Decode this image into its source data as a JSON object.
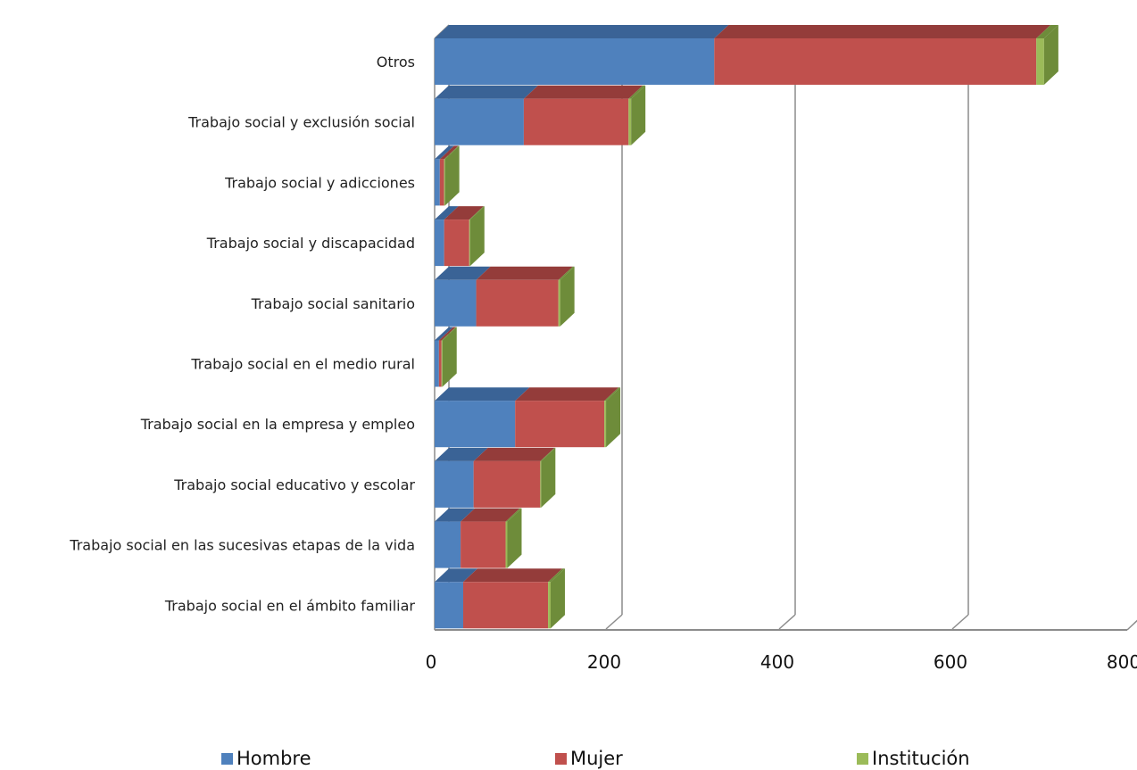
{
  "chart_data": {
    "type": "bar",
    "orientation": "horizontal",
    "stacked": true,
    "three_d": true,
    "categories": [
      "Otros",
      "Trabajo social y exclusión social",
      "Trabajo social y adicciones",
      "Trabajo social y discapacidad",
      "Trabajo social sanitario",
      "Trabajo social en el medio rural",
      "Trabajo social en la empresa y empleo",
      "Trabajo social educativo y escolar",
      "Trabajo social en las sucesivas etapas de la vida",
      "Trabajo social en el ámbito familiar"
    ],
    "series": [
      {
        "name": "Hombre",
        "color": "#4F81BD",
        "top_color": "#3A6396",
        "values": [
          323,
          103,
          6,
          11,
          48,
          5,
          93,
          45,
          30,
          33
        ]
      },
      {
        "name": "Mujer",
        "color": "#C0504D",
        "top_color": "#943C3A",
        "values": [
          372,
          121,
          5,
          29,
          95,
          3,
          103,
          77,
          52,
          98
        ]
      },
      {
        "name": "Institución",
        "color": "#9BBB59",
        "top_color": "#6E8C3A",
        "values": [
          9,
          3,
          1,
          1,
          2,
          1,
          2,
          1,
          2,
          3
        ]
      }
    ],
    "xlim": [
      0,
      800
    ],
    "xticks": [
      "0",
      "200",
      "400",
      "600",
      "800"
    ],
    "grid": true,
    "legend_position": "bottom"
  }
}
